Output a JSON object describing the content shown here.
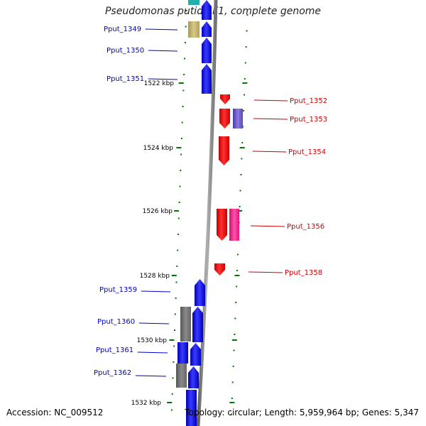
{
  "title": "Pseudomonas putida F1, complete genome",
  "footer": {
    "accession": "Accession: NC_009512",
    "summary": "Topology: circular; Length: 5,959,964 bp; Genes: 5,347"
  },
  "scale": {
    "unit": "kbp",
    "ticks": [
      {
        "label": "1522 kbp"
      },
      {
        "label": "1524 kbp"
      },
      {
        "label": "1526 kbp"
      },
      {
        "label": "1528 kbp"
      },
      {
        "label": "1530 kbp"
      },
      {
        "label": "1532 kbp"
      }
    ]
  },
  "genes": {
    "forward": [
      {
        "name": "Pput_1349",
        "color": "#0000ff"
      },
      {
        "name": "Pput_1350",
        "color": "#0000ff"
      },
      {
        "name": "Pput_1351",
        "color": "#0000ff"
      },
      {
        "name": "Pput_1359",
        "color": "#0000ff"
      },
      {
        "name": "Pput_1360",
        "color": "#0000ff"
      },
      {
        "name": "Pput_1361",
        "color": "#0000ff"
      },
      {
        "name": "Pput_1362",
        "color": "#0000ff"
      }
    ],
    "reverse": [
      {
        "name": "Pput_1352",
        "color": "#ff0000"
      },
      {
        "name": "Pput_1353",
        "color": "#ff0000"
      },
      {
        "name": "Pput_1354",
        "color": "#ff0000"
      },
      {
        "name": "Pput_1356",
        "color": "#ff0000"
      },
      {
        "name": "Pput_1358",
        "color": "#ff0000"
      }
    ]
  },
  "colors": {
    "label_forward": "#0000cc",
    "label_reverse": "#cc0000",
    "cog_khaki": "#c8b870",
    "cog_purple": "#6a5acd",
    "cog_pink": "#ff1493",
    "cog_gray": "#808080",
    "cog_teal": "#20b2aa",
    "backbone": "#808080",
    "ticks": "#007700"
  }
}
